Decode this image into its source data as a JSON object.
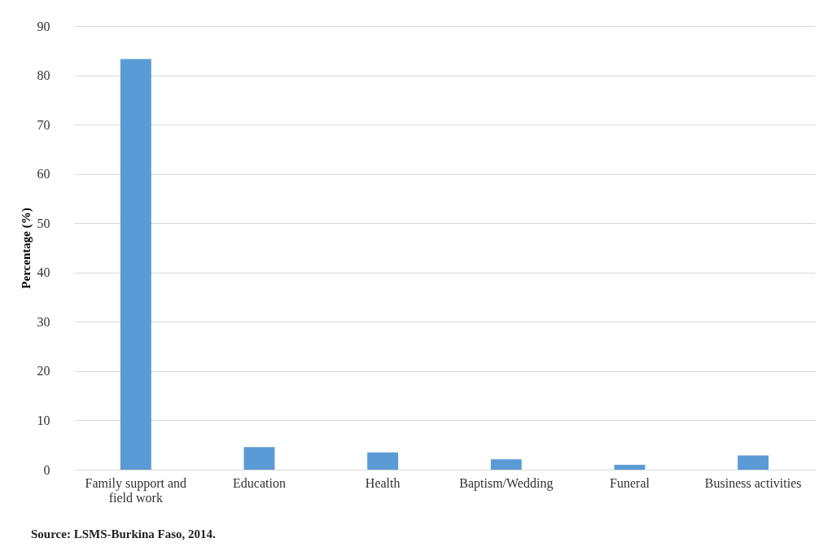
{
  "chart_data": {
    "type": "bar",
    "ylabel": "Percentage (%)",
    "categories": [
      "Family support and field work",
      "Education",
      "Health",
      "Baptism/Wedding",
      "Funeral",
      "Business activities"
    ],
    "values": [
      83.3,
      4.6,
      3.5,
      2.1,
      1.0,
      2.9
    ],
    "color": "#5b9bd5",
    "ylim": [
      0,
      90
    ],
    "yticks": [
      0,
      10,
      20,
      30,
      40,
      50,
      60,
      70,
      80,
      90
    ],
    "grid": "y",
    "annotations": [
      "Source: LSMS-Burkina Faso, 2014."
    ]
  }
}
